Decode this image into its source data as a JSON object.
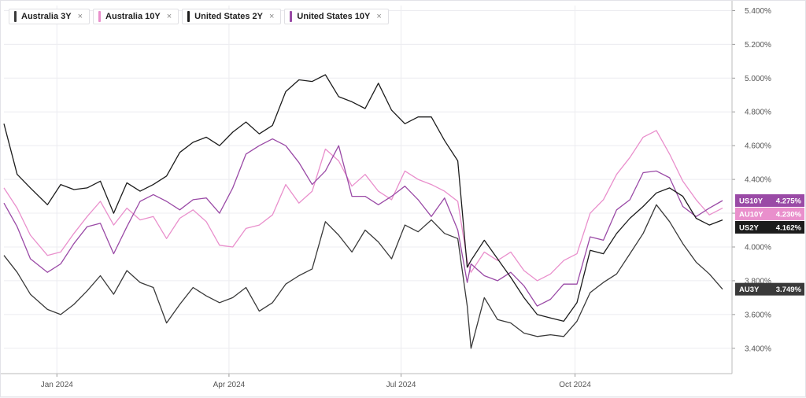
{
  "legend": [
    {
      "label": "Australia 3Y",
      "close": "×",
      "color": "#3a3a3a"
    },
    {
      "label": "Australia 10Y",
      "close": "×",
      "color": "#e98fcc"
    },
    {
      "label": "United States 2Y",
      "close": "×",
      "color": "#1c1c1c"
    },
    {
      "label": "United States 10Y",
      "close": "×",
      "color": "#9a4aa6"
    }
  ],
  "chart_data": {
    "type": "line",
    "y_tick_labels": [
      "5.400%",
      "5.200%",
      "5.000%",
      "4.800%",
      "4.600%",
      "4.400%",
      "4.200%",
      "4.000%",
      "3.800%",
      "3.600%",
      "3.400%"
    ],
    "y_tick_values": [
      5.4,
      5.2,
      5.0,
      4.8,
      4.6,
      4.4,
      4.2,
      4.0,
      3.8,
      3.6,
      3.4
    ],
    "ylim": [
      3.25,
      5.43
    ],
    "x_tick_labels": [
      "Jan 2024",
      "Apr 2024",
      "Jul 2024",
      "Oct 2024"
    ],
    "x_tick_values": [
      "2024-01-01",
      "2024-04-01",
      "2024-07-01",
      "2024-10-01"
    ],
    "xlim": [
      "2023-12-04",
      "2024-12-23"
    ],
    "grid": true,
    "series": [
      {
        "name": "Australia 3Y",
        "tag": "AU3Y",
        "value_label": "3.749%",
        "color": "#3a3a3a",
        "points": [
          [
            "2023-12-04",
            3.95
          ],
          [
            "2023-12-11",
            3.85
          ],
          [
            "2023-12-18",
            3.72
          ],
          [
            "2023-12-27",
            3.63
          ],
          [
            "2024-01-03",
            3.6
          ],
          [
            "2024-01-10",
            3.66
          ],
          [
            "2024-01-17",
            3.74
          ],
          [
            "2024-01-24",
            3.83
          ],
          [
            "2024-01-31",
            3.72
          ],
          [
            "2024-02-07",
            3.86
          ],
          [
            "2024-02-14",
            3.79
          ],
          [
            "2024-02-21",
            3.76
          ],
          [
            "2024-02-28",
            3.55
          ],
          [
            "2024-03-06",
            3.66
          ],
          [
            "2024-03-13",
            3.76
          ],
          [
            "2024-03-20",
            3.71
          ],
          [
            "2024-03-27",
            3.67
          ],
          [
            "2024-04-03",
            3.7
          ],
          [
            "2024-04-10",
            3.76
          ],
          [
            "2024-04-17",
            3.62
          ],
          [
            "2024-04-24",
            3.67
          ],
          [
            "2024-05-01",
            3.78
          ],
          [
            "2024-05-08",
            3.83
          ],
          [
            "2024-05-15",
            3.87
          ],
          [
            "2024-05-22",
            4.15
          ],
          [
            "2024-05-29",
            4.07
          ],
          [
            "2024-06-05",
            3.97
          ],
          [
            "2024-06-12",
            4.1
          ],
          [
            "2024-06-19",
            4.03
          ],
          [
            "2024-06-26",
            3.93
          ],
          [
            "2024-07-03",
            4.13
          ],
          [
            "2024-07-10",
            4.09
          ],
          [
            "2024-07-17",
            4.16
          ],
          [
            "2024-07-24",
            4.08
          ],
          [
            "2024-07-31",
            4.05
          ],
          [
            "2024-08-05",
            3.65
          ],
          [
            "2024-08-07",
            3.4
          ],
          [
            "2024-08-14",
            3.7
          ],
          [
            "2024-08-21",
            3.57
          ],
          [
            "2024-08-28",
            3.55
          ],
          [
            "2024-09-04",
            3.49
          ],
          [
            "2024-09-11",
            3.47
          ],
          [
            "2024-09-18",
            3.48
          ],
          [
            "2024-09-25",
            3.47
          ],
          [
            "2024-10-02",
            3.56
          ],
          [
            "2024-10-09",
            3.73
          ],
          [
            "2024-10-16",
            3.79
          ],
          [
            "2024-10-23",
            3.84
          ],
          [
            "2024-10-30",
            3.96
          ],
          [
            "2024-11-06",
            4.08
          ],
          [
            "2024-11-13",
            4.25
          ],
          [
            "2024-11-20",
            4.15
          ],
          [
            "2024-11-27",
            4.02
          ],
          [
            "2024-12-04",
            3.91
          ],
          [
            "2024-12-11",
            3.84
          ],
          [
            "2024-12-18",
            3.75
          ]
        ]
      },
      {
        "name": "Australia 10Y",
        "tag": "AU10Y",
        "value_label": "4.230%",
        "color": "#e98fcc",
        "points": [
          [
            "2023-12-04",
            4.35
          ],
          [
            "2023-12-11",
            4.23
          ],
          [
            "2023-12-18",
            4.07
          ],
          [
            "2023-12-27",
            3.95
          ],
          [
            "2024-01-03",
            3.97
          ],
          [
            "2024-01-10",
            4.08
          ],
          [
            "2024-01-17",
            4.18
          ],
          [
            "2024-01-24",
            4.27
          ],
          [
            "2024-01-31",
            4.13
          ],
          [
            "2024-02-07",
            4.23
          ],
          [
            "2024-02-14",
            4.16
          ],
          [
            "2024-02-21",
            4.18
          ],
          [
            "2024-02-28",
            4.05
          ],
          [
            "2024-03-06",
            4.17
          ],
          [
            "2024-03-13",
            4.22
          ],
          [
            "2024-03-20",
            4.15
          ],
          [
            "2024-03-27",
            4.01
          ],
          [
            "2024-04-03",
            4.0
          ],
          [
            "2024-04-10",
            4.11
          ],
          [
            "2024-04-17",
            4.13
          ],
          [
            "2024-04-24",
            4.19
          ],
          [
            "2024-05-01",
            4.37
          ],
          [
            "2024-05-08",
            4.26
          ],
          [
            "2024-05-15",
            4.33
          ],
          [
            "2024-05-22",
            4.58
          ],
          [
            "2024-05-29",
            4.51
          ],
          [
            "2024-06-05",
            4.36
          ],
          [
            "2024-06-12",
            4.43
          ],
          [
            "2024-06-19",
            4.33
          ],
          [
            "2024-06-26",
            4.28
          ],
          [
            "2024-07-03",
            4.45
          ],
          [
            "2024-07-10",
            4.4
          ],
          [
            "2024-07-17",
            4.37
          ],
          [
            "2024-07-24",
            4.33
          ],
          [
            "2024-07-31",
            4.27
          ],
          [
            "2024-08-05",
            3.92
          ],
          [
            "2024-08-07",
            3.85
          ],
          [
            "2024-08-14",
            3.97
          ],
          [
            "2024-08-21",
            3.92
          ],
          [
            "2024-08-28",
            3.97
          ],
          [
            "2024-09-04",
            3.86
          ],
          [
            "2024-09-11",
            3.8
          ],
          [
            "2024-09-18",
            3.84
          ],
          [
            "2024-09-25",
            3.92
          ],
          [
            "2024-10-02",
            3.96
          ],
          [
            "2024-10-09",
            4.2
          ],
          [
            "2024-10-16",
            4.28
          ],
          [
            "2024-10-23",
            4.43
          ],
          [
            "2024-10-30",
            4.53
          ],
          [
            "2024-11-06",
            4.65
          ],
          [
            "2024-11-13",
            4.69
          ],
          [
            "2024-11-20",
            4.55
          ],
          [
            "2024-11-27",
            4.39
          ],
          [
            "2024-12-04",
            4.28
          ],
          [
            "2024-12-11",
            4.19
          ],
          [
            "2024-12-18",
            4.23
          ]
        ]
      },
      {
        "name": "United States 2Y",
        "tag": "US2Y",
        "value_label": "4.162%",
        "color": "#1c1c1c",
        "points": [
          [
            "2023-12-04",
            4.73
          ],
          [
            "2023-12-11",
            4.43
          ],
          [
            "2023-12-18",
            4.35
          ],
          [
            "2023-12-27",
            4.25
          ],
          [
            "2024-01-03",
            4.37
          ],
          [
            "2024-01-10",
            4.34
          ],
          [
            "2024-01-17",
            4.35
          ],
          [
            "2024-01-24",
            4.39
          ],
          [
            "2024-01-31",
            4.2
          ],
          [
            "2024-02-07",
            4.38
          ],
          [
            "2024-02-14",
            4.33
          ],
          [
            "2024-02-21",
            4.37
          ],
          [
            "2024-02-28",
            4.42
          ],
          [
            "2024-03-06",
            4.56
          ],
          [
            "2024-03-13",
            4.62
          ],
          [
            "2024-03-20",
            4.65
          ],
          [
            "2024-03-27",
            4.6
          ],
          [
            "2024-04-03",
            4.68
          ],
          [
            "2024-04-10",
            4.74
          ],
          [
            "2024-04-17",
            4.67
          ],
          [
            "2024-04-24",
            4.72
          ],
          [
            "2024-05-01",
            4.92
          ],
          [
            "2024-05-08",
            4.99
          ],
          [
            "2024-05-15",
            4.98
          ],
          [
            "2024-05-22",
            5.02
          ],
          [
            "2024-05-29",
            4.89
          ],
          [
            "2024-06-05",
            4.86
          ],
          [
            "2024-06-12",
            4.82
          ],
          [
            "2024-06-19",
            4.97
          ],
          [
            "2024-06-26",
            4.81
          ],
          [
            "2024-07-03",
            4.73
          ],
          [
            "2024-07-10",
            4.77
          ],
          [
            "2024-07-17",
            4.77
          ],
          [
            "2024-07-24",
            4.63
          ],
          [
            "2024-07-31",
            4.51
          ],
          [
            "2024-08-05",
            3.88
          ],
          [
            "2024-08-07",
            3.92
          ],
          [
            "2024-08-14",
            4.04
          ],
          [
            "2024-08-21",
            3.93
          ],
          [
            "2024-08-28",
            3.82
          ],
          [
            "2024-09-04",
            3.7
          ],
          [
            "2024-09-11",
            3.6
          ],
          [
            "2024-09-18",
            3.58
          ],
          [
            "2024-09-25",
            3.56
          ],
          [
            "2024-10-02",
            3.67
          ],
          [
            "2024-10-09",
            3.98
          ],
          [
            "2024-10-16",
            3.96
          ],
          [
            "2024-10-23",
            4.08
          ],
          [
            "2024-10-30",
            4.17
          ],
          [
            "2024-11-06",
            4.24
          ],
          [
            "2024-11-13",
            4.32
          ],
          [
            "2024-11-20",
            4.35
          ],
          [
            "2024-11-27",
            4.3
          ],
          [
            "2024-12-04",
            4.17
          ],
          [
            "2024-12-11",
            4.13
          ],
          [
            "2024-12-18",
            4.16
          ]
        ]
      },
      {
        "name": "United States 10Y",
        "tag": "US10Y",
        "value_label": "4.275%",
        "color": "#9a4aa6",
        "points": [
          [
            "2023-12-04",
            4.26
          ],
          [
            "2023-12-11",
            4.12
          ],
          [
            "2023-12-18",
            3.93
          ],
          [
            "2023-12-27",
            3.85
          ],
          [
            "2024-01-03",
            3.9
          ],
          [
            "2024-01-10",
            4.02
          ],
          [
            "2024-01-17",
            4.12
          ],
          [
            "2024-01-24",
            4.14
          ],
          [
            "2024-01-31",
            3.96
          ],
          [
            "2024-02-07",
            4.12
          ],
          [
            "2024-02-14",
            4.27
          ],
          [
            "2024-02-21",
            4.31
          ],
          [
            "2024-02-28",
            4.27
          ],
          [
            "2024-03-06",
            4.22
          ],
          [
            "2024-03-13",
            4.28
          ],
          [
            "2024-03-20",
            4.29
          ],
          [
            "2024-03-27",
            4.2
          ],
          [
            "2024-04-03",
            4.35
          ],
          [
            "2024-04-10",
            4.55
          ],
          [
            "2024-04-17",
            4.6
          ],
          [
            "2024-04-24",
            4.64
          ],
          [
            "2024-05-01",
            4.6
          ],
          [
            "2024-05-08",
            4.5
          ],
          [
            "2024-05-15",
            4.37
          ],
          [
            "2024-05-22",
            4.45
          ],
          [
            "2024-05-29",
            4.6
          ],
          [
            "2024-06-05",
            4.3
          ],
          [
            "2024-06-12",
            4.3
          ],
          [
            "2024-06-19",
            4.25
          ],
          [
            "2024-06-26",
            4.3
          ],
          [
            "2024-07-03",
            4.36
          ],
          [
            "2024-07-10",
            4.28
          ],
          [
            "2024-07-17",
            4.18
          ],
          [
            "2024-07-24",
            4.29
          ],
          [
            "2024-07-31",
            4.1
          ],
          [
            "2024-08-05",
            3.79
          ],
          [
            "2024-08-07",
            3.9
          ],
          [
            "2024-08-14",
            3.83
          ],
          [
            "2024-08-21",
            3.8
          ],
          [
            "2024-08-28",
            3.85
          ],
          [
            "2024-09-04",
            3.77
          ],
          [
            "2024-09-11",
            3.65
          ],
          [
            "2024-09-18",
            3.69
          ],
          [
            "2024-09-25",
            3.78
          ],
          [
            "2024-10-02",
            3.78
          ],
          [
            "2024-10-09",
            4.06
          ],
          [
            "2024-10-16",
            4.04
          ],
          [
            "2024-10-23",
            4.22
          ],
          [
            "2024-10-30",
            4.28
          ],
          [
            "2024-11-06",
            4.44
          ],
          [
            "2024-11-13",
            4.45
          ],
          [
            "2024-11-20",
            4.41
          ],
          [
            "2024-11-27",
            4.24
          ],
          [
            "2024-12-04",
            4.18
          ],
          [
            "2024-12-11",
            4.23
          ],
          [
            "2024-12-18",
            4.275
          ]
        ]
      }
    ]
  }
}
